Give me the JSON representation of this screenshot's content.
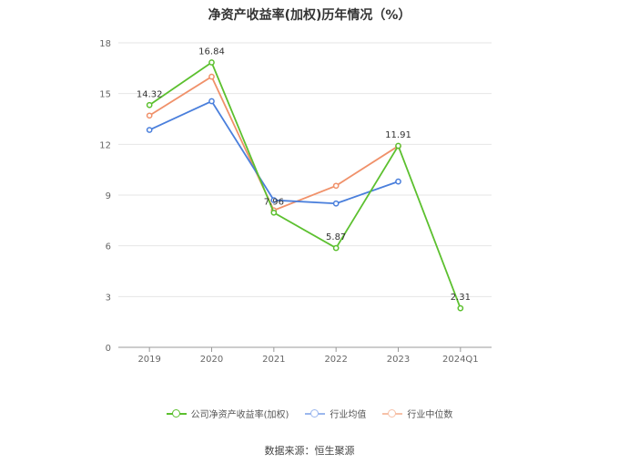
{
  "chart_data": {
    "type": "line",
    "title": "净资产收益率(加权)历年情况（%）",
    "categories": [
      "2019",
      "2020",
      "2021",
      "2022",
      "2023",
      "2024Q1"
    ],
    "ylim": [
      0,
      18
    ],
    "yticks": [
      0,
      3,
      6,
      9,
      12,
      15,
      18
    ],
    "grid": true,
    "legend_position": "bottom",
    "series": [
      {
        "name": "公司净资产收益率(加权)",
        "color": "#5cc02f",
        "values": [
          14.32,
          16.84,
          7.96,
          5.87,
          11.91,
          2.31
        ],
        "labels": [
          "14.32",
          "16.84",
          "7.96",
          "5.87",
          "11.91",
          "2.31"
        ]
      },
      {
        "name": "行业均值",
        "color": "#4a7fdc",
        "values": [
          12.85,
          14.55,
          8.7,
          8.5,
          9.8,
          null
        ]
      },
      {
        "name": "行业中位数",
        "color": "#f0916a",
        "values": [
          13.7,
          16.0,
          8.1,
          9.55,
          11.9,
          null
        ]
      }
    ]
  },
  "source": "数据来源：恒生聚源"
}
